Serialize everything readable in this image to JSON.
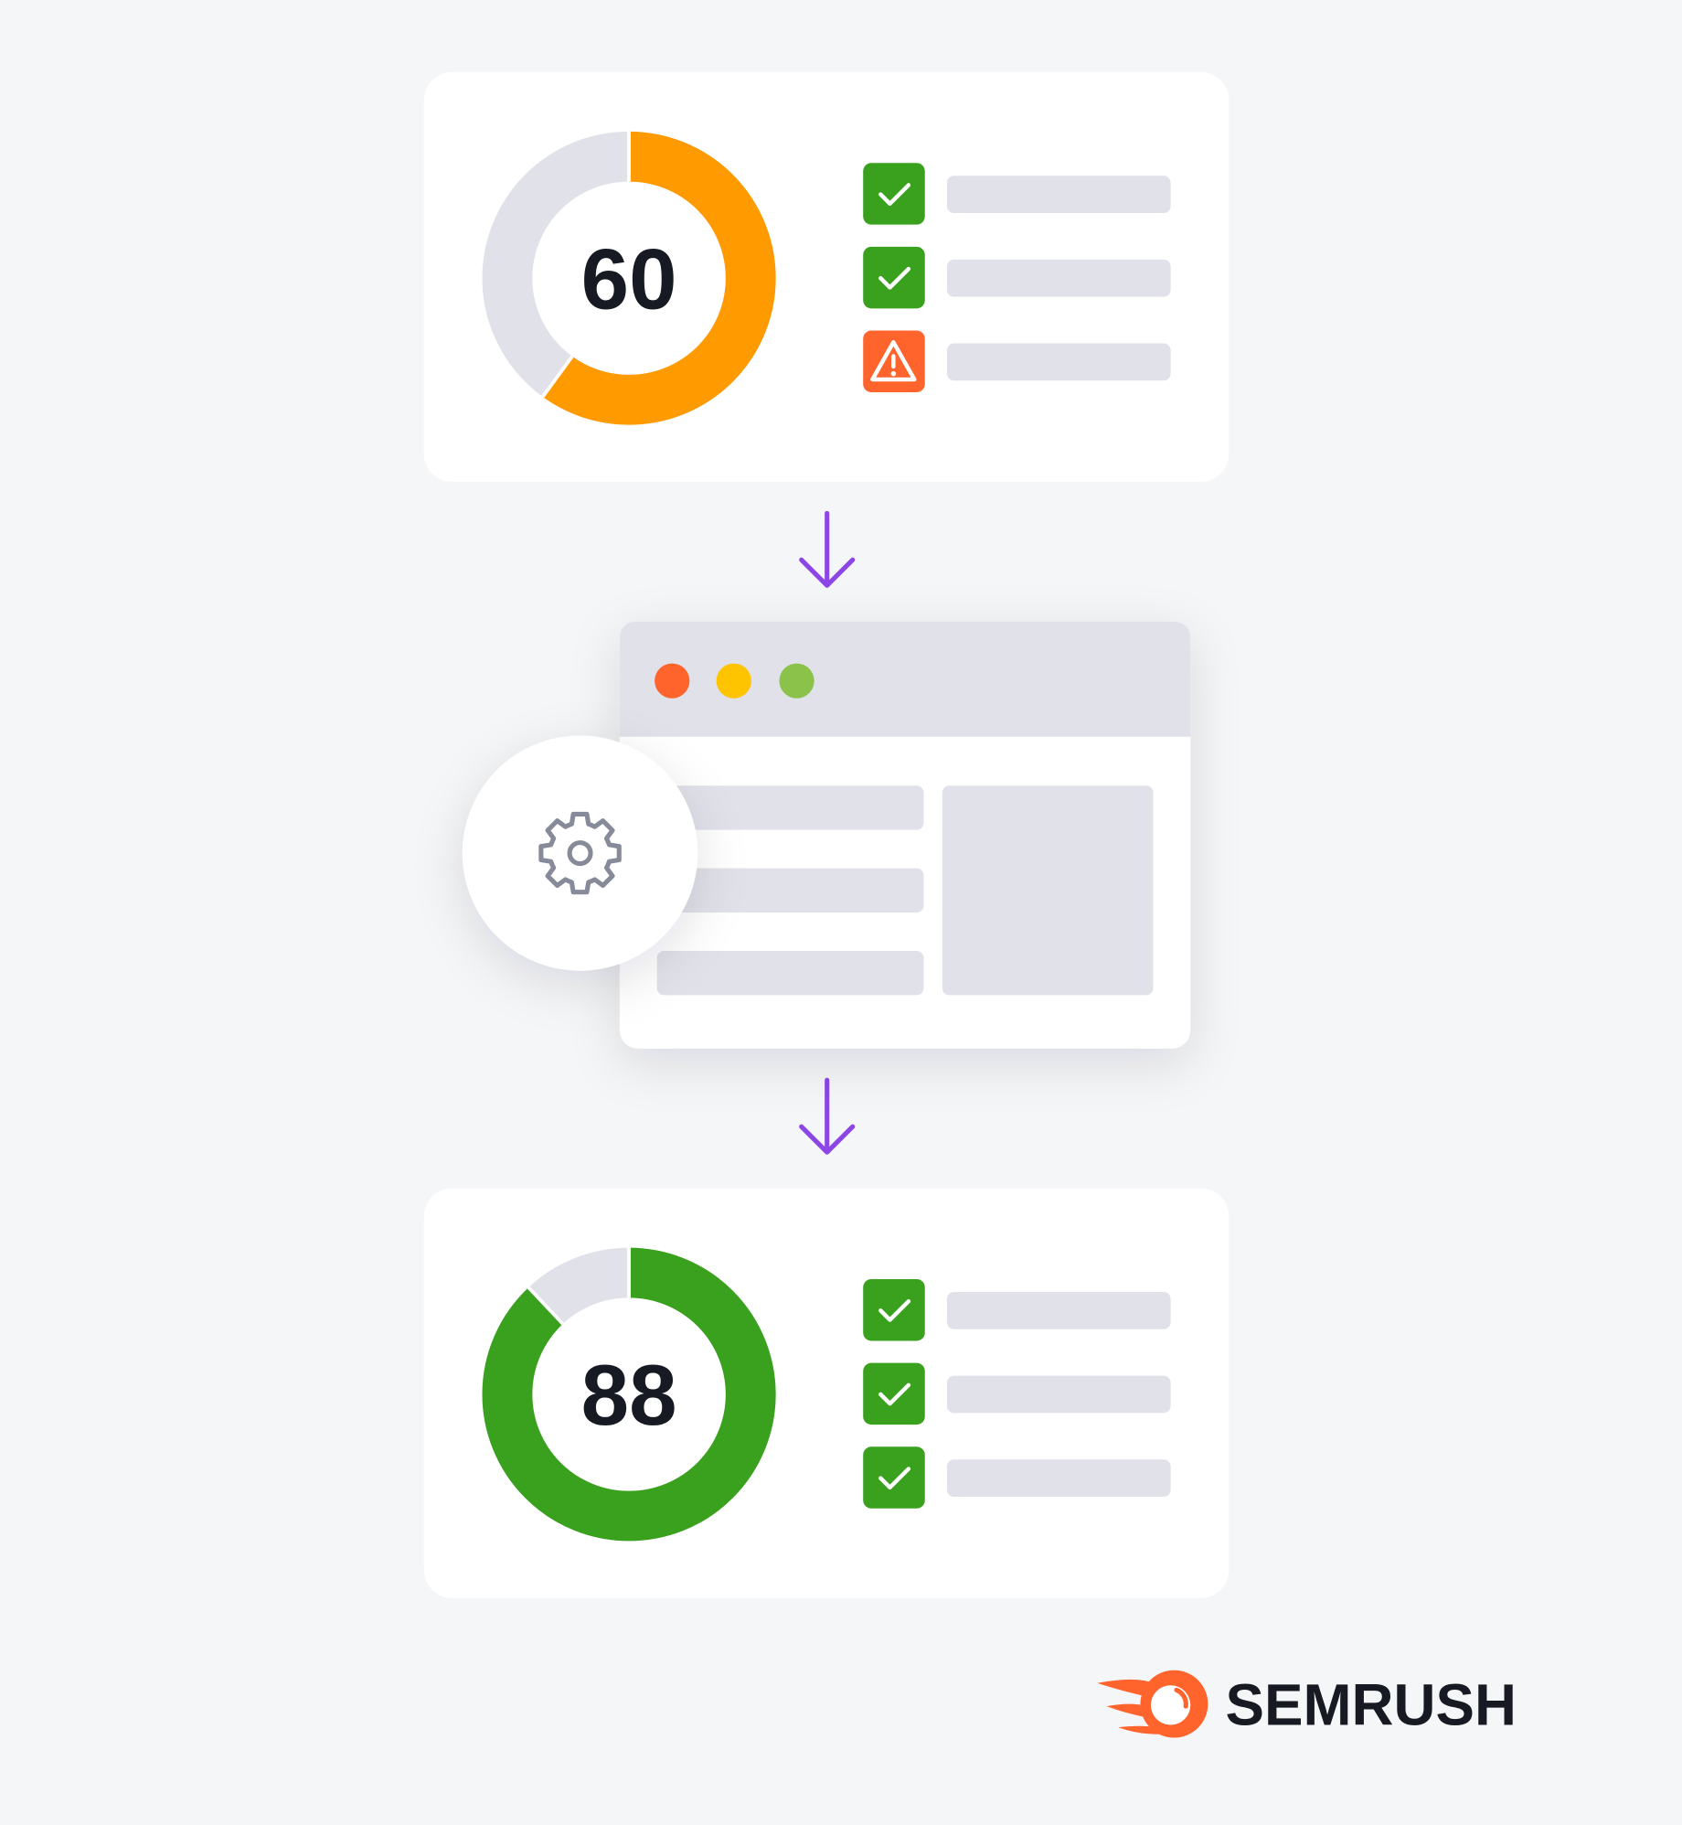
{
  "cards": [
    {
      "score": 60,
      "range": [
        0,
        100
      ],
      "color": "#ff9a00"
    },
    {
      "score": 88,
      "range": [
        0,
        100
      ],
      "color": "#3aa11f"
    }
  ],
  "logo": "SEMRUSH"
}
